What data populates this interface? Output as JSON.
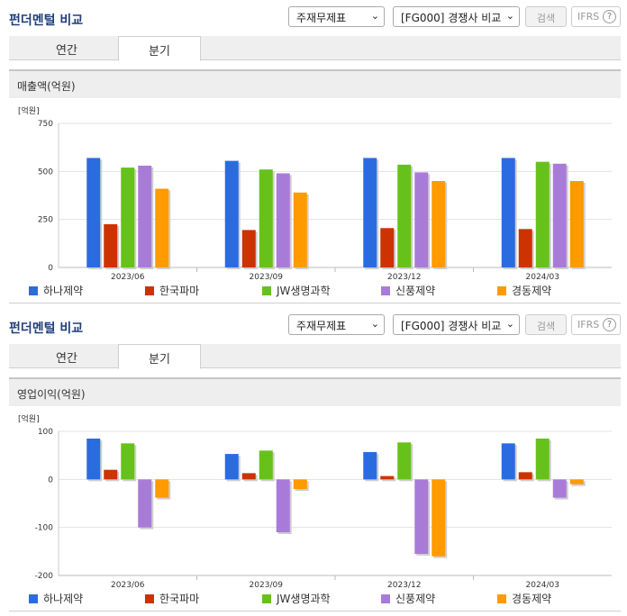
{
  "panels": [
    {
      "title": "펀더멘털 비교",
      "statement_select": "주재무제표",
      "compare_select": "[FG000] 경쟁사 비교",
      "search_label": "검색",
      "ifrs_label": "IFRS",
      "help_icon": "?",
      "tabs": [
        {
          "label": "연간",
          "active": false
        },
        {
          "label": "분기",
          "active": true
        }
      ],
      "section_title": "매출액(억원)",
      "chart_data": {
        "type": "bar",
        "unit_label": "[억원]",
        "categories": [
          "2023/06",
          "2023/09",
          "2023/12",
          "2024/03"
        ],
        "ylim": [
          0,
          750
        ],
        "yticks": [
          0,
          250,
          500,
          750
        ],
        "ytick_labels": [
          "0",
          "250",
          "500",
          "750"
        ],
        "grid": true,
        "legend_position": "bottom",
        "series": [
          {
            "name": "하나제약",
            "color": "#2a6ce0",
            "values": [
              570,
              555,
              570,
              570
            ]
          },
          {
            "name": "한국파마",
            "color": "#cc3300",
            "values": [
              225,
              195,
              205,
              200
            ]
          },
          {
            "name": "JW생명과학",
            "color": "#66c21a",
            "values": [
              520,
              510,
              535,
              550
            ]
          },
          {
            "name": "신풍제약",
            "color": "#a97bd9",
            "values": [
              530,
              490,
              495,
              540
            ]
          },
          {
            "name": "경동제약",
            "color": "#ff9a00",
            "values": [
              410,
              390,
              450,
              450
            ]
          }
        ]
      }
    },
    {
      "title": "펀더멘털 비교",
      "statement_select": "주재무제표",
      "compare_select": "[FG000] 경쟁사 비교",
      "search_label": "검색",
      "ifrs_label": "IFRS",
      "help_icon": "?",
      "tabs": [
        {
          "label": "연간",
          "active": false
        },
        {
          "label": "분기",
          "active": true
        }
      ],
      "section_title": "영업이익(억원)",
      "chart_data": {
        "type": "bar",
        "unit_label": "[억원]",
        "categories": [
          "2023/06",
          "2023/09",
          "2023/12",
          "2024/03"
        ],
        "ylim": [
          -200,
          100
        ],
        "yticks": [
          -200,
          -100,
          0,
          100
        ],
        "ytick_labels": [
          "-200",
          "-100",
          "0",
          "100"
        ],
        "grid": true,
        "legend_position": "bottom",
        "series": [
          {
            "name": "하나제약",
            "color": "#2a6ce0",
            "values": [
              85,
              53,
              57,
              75
            ]
          },
          {
            "name": "한국파마",
            "color": "#cc3300",
            "values": [
              20,
              13,
              7,
              15
            ]
          },
          {
            "name": "JW생명과학",
            "color": "#66c21a",
            "values": [
              75,
              60,
              77,
              85
            ]
          },
          {
            "name": "신풍제약",
            "color": "#a97bd9",
            "values": [
              -100,
              -110,
              -155,
              -38
            ]
          },
          {
            "name": "경동제약",
            "color": "#ff9a00",
            "values": [
              -38,
              -20,
              -160,
              -10
            ]
          }
        ]
      }
    }
  ]
}
